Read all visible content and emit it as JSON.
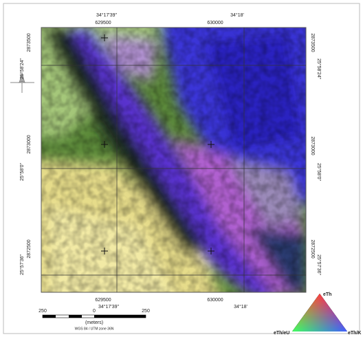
{
  "top_labels": {
    "lon_left": "34°17'39\"",
    "easting_left": "629500",
    "lon_right": "34°18'",
    "easting_right": "630000"
  },
  "bottom_labels": {
    "easting_left": "629500",
    "lon_left": "34°17'39\"",
    "easting_right": "630000",
    "lon_right": "34°18'"
  },
  "left_labels": [
    "2873500",
    "25°58'24\"",
    "2873000",
    "25°58'0\"",
    "2872500",
    "25°57'36\""
  ],
  "right_labels": [
    "2873500",
    "25°58'24\"",
    "2873000",
    "25°58'0\"",
    "2872500",
    "25°57'36\""
  ],
  "scale_bar": {
    "labels": [
      "250",
      "0",
      "250"
    ],
    "unit": "(meters)",
    "projection": "WGS 84 / UTM zone 36N"
  },
  "legend": {
    "top": "eTh",
    "left": "eTh/eU",
    "right": "eTh/K"
  }
}
